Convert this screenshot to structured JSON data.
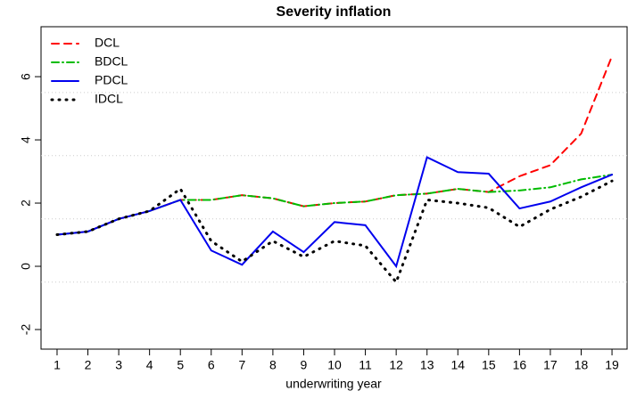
{
  "chart_data": {
    "type": "line",
    "title": "Severity inflation",
    "x_label": "underwriting year",
    "x": [
      1,
      2,
      3,
      4,
      5,
      6,
      7,
      8,
      9,
      10,
      11,
      12,
      13,
      14,
      15,
      16,
      17,
      18,
      19
    ],
    "xlim": [
      0.48,
      19.49
    ],
    "xticks": [
      1,
      2,
      3,
      4,
      5,
      6,
      7,
      8,
      9,
      10,
      11,
      12,
      13,
      14,
      15,
      16,
      17,
      18,
      19
    ],
    "ylim": [
      -2.62,
      7.58
    ],
    "yticks": [
      -2,
      0,
      2,
      4,
      6
    ],
    "grid_y": [
      -0.5,
      1.5,
      3.5,
      5.5
    ],
    "legend": "top-left",
    "series": [
      {
        "name": "DCL",
        "color": "#ff0000",
        "dash": "8 6",
        "values": [
          1.0,
          1.1,
          1.5,
          1.75,
          2.1,
          2.1,
          2.25,
          2.15,
          1.9,
          2.0,
          2.05,
          2.25,
          2.3,
          2.45,
          2.35,
          2.85,
          3.2,
          4.2,
          6.65
        ]
      },
      {
        "name": "BDCL",
        "color": "#00bb00",
        "dash": "8 4 1 4",
        "values": [
          1.0,
          1.1,
          1.5,
          1.75,
          2.1,
          2.1,
          2.25,
          2.15,
          1.9,
          2.0,
          2.05,
          2.25,
          2.3,
          2.45,
          2.35,
          2.4,
          2.5,
          2.75,
          2.9
        ]
      },
      {
        "name": "PDCL",
        "color": "#0000ee",
        "dash": "none",
        "values": [
          1.0,
          1.1,
          1.5,
          1.75,
          2.1,
          0.5,
          0.05,
          1.1,
          0.45,
          1.4,
          1.3,
          0.0,
          3.45,
          2.98,
          2.93,
          1.83,
          2.05,
          2.5,
          2.9
        ]
      },
      {
        "name": "IDCL",
        "color": "#000000",
        "dash": "1 7",
        "values": [
          1.0,
          1.1,
          1.5,
          1.75,
          2.45,
          0.8,
          0.15,
          0.8,
          0.3,
          0.8,
          0.65,
          -0.5,
          2.1,
          2.0,
          1.85,
          1.25,
          1.8,
          2.2,
          2.7
        ]
      }
    ]
  }
}
